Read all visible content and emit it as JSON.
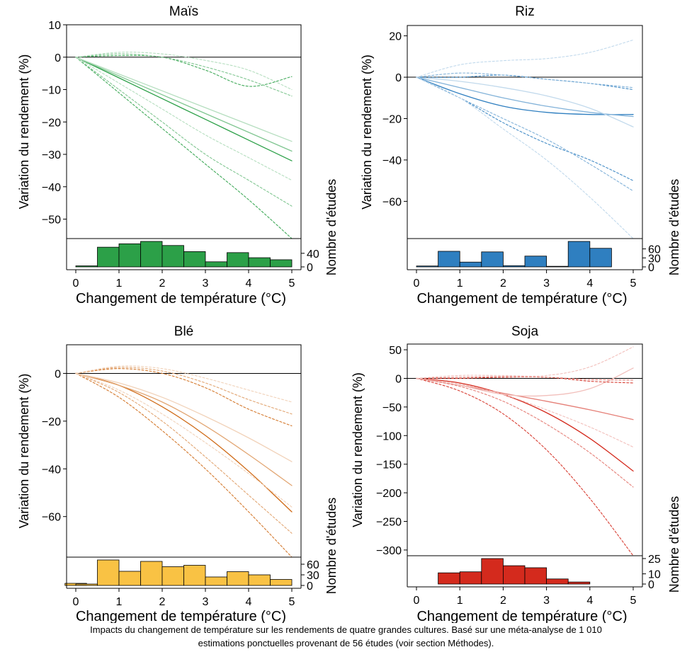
{
  "caption": {
    "line1": "Impacts du changement de température sur les rendements de quatre grandes cultures. Basé sur une méta-analyse de 1 010",
    "line2": "estimations ponctuelles provenant de 56 études (voir section Méthodes)."
  },
  "chart_data": [
    {
      "type": "line",
      "title": "Maïs",
      "xlabel": "Changement de température (°C)",
      "ylabel": "Variation du rendement (%)",
      "y2label": "Nombre d'études",
      "xlim": [
        0,
        5
      ],
      "ylim": [
        -56,
        10
      ],
      "yticks": [
        10,
        0,
        -10,
        -20,
        -30,
        -40,
        -50
      ],
      "ytick_labels": [
        "10",
        "0",
        "−10",
        "−20",
        "−30",
        "−40",
        "−50"
      ],
      "xticks": [
        0,
        1,
        2,
        3,
        4,
        5
      ],
      "color": "#2ca048",
      "curves": [
        {
          "style": "solid",
          "shade": 1.0,
          "y": [
            0,
            -6.4,
            -12.8,
            -19.2,
            -25.6,
            -32
          ]
        },
        {
          "style": "solid",
          "shade": 0.6,
          "y": [
            0,
            -5.8,
            -11.6,
            -17.4,
            -23.2,
            -29
          ]
        },
        {
          "style": "solid",
          "shade": 0.35,
          "y": [
            0,
            -5.2,
            -10.4,
            -15.6,
            -20.8,
            -26
          ]
        },
        {
          "style": "dashed",
          "shade": 0.9,
          "y": [
            0,
            0.5,
            0,
            -4,
            -9,
            -6
          ]
        },
        {
          "style": "dashed",
          "shade": 0.6,
          "y": [
            0,
            1,
            0,
            -3,
            -7,
            -12
          ]
        },
        {
          "style": "dashed",
          "shade": 0.35,
          "y": [
            0,
            1.5,
            1,
            -1,
            -4,
            -10
          ]
        },
        {
          "style": "dashed",
          "shade": 0.9,
          "y": [
            0,
            -11,
            -22,
            -33,
            -44,
            -56
          ]
        },
        {
          "style": "dashed",
          "shade": 0.6,
          "y": [
            0,
            -10,
            -20,
            -30,
            -38,
            -46
          ]
        },
        {
          "style": "dashed",
          "shade": 0.35,
          "y": [
            0,
            -8,
            -16,
            -24,
            -31,
            -38
          ]
        }
      ],
      "histogram": {
        "bin_width": 0.5,
        "bin_starts": [
          0,
          0.5,
          1,
          1.5,
          2,
          2.5,
          3,
          3.5,
          4,
          4.5
        ],
        "counts": [
          3,
          58,
          68,
          75,
          63,
          45,
          15,
          42,
          27,
          21
        ],
        "max": 75,
        "ticks": [
          0,
          40
        ],
        "tick_labels": [
          "0",
          "40"
        ]
      }
    },
    {
      "type": "line",
      "title": "Riz",
      "xlabel": "Changement de température (°C)",
      "ylabel": "Variation du rendement (%)",
      "y2label": "Nombre d'études",
      "xlim": [
        0,
        5
      ],
      "ylim": [
        -78,
        25
      ],
      "yticks": [
        20,
        0,
        -20,
        -40,
        -60
      ],
      "ytick_labels": [
        "20",
        "0",
        "−20",
        "−40",
        "−60"
      ],
      "xticks": [
        0,
        1,
        2,
        3,
        4,
        5
      ],
      "color": "#2f7fc0",
      "curves": [
        {
          "style": "solid",
          "shade": 1.0,
          "y": [
            0,
            -8,
            -14,
            -17,
            -18,
            -18
          ]
        },
        {
          "style": "solid",
          "shade": 0.6,
          "y": [
            0,
            -5,
            -10,
            -14,
            -17,
            -19
          ]
        },
        {
          "style": "solid",
          "shade": 0.3,
          "y": [
            0,
            -2,
            -5,
            -9,
            -15,
            -24
          ]
        },
        {
          "style": "dashed",
          "shade": 0.9,
          "y": [
            0,
            0,
            1,
            -1,
            -3,
            -6
          ]
        },
        {
          "style": "dashed",
          "shade": 0.6,
          "y": [
            0,
            2,
            1,
            -1,
            -3,
            -5
          ]
        },
        {
          "style": "dashed",
          "shade": 0.3,
          "y": [
            0,
            6,
            8,
            9,
            12,
            18
          ]
        },
        {
          "style": "dashed",
          "shade": 0.9,
          "y": [
            0,
            -10,
            -22,
            -32,
            -40,
            -50
          ]
        },
        {
          "style": "dashed",
          "shade": 0.6,
          "y": [
            0,
            -10,
            -20,
            -30,
            -42,
            -55
          ]
        },
        {
          "style": "dashed",
          "shade": 0.3,
          "y": [
            0,
            -10,
            -25,
            -40,
            -58,
            -78
          ]
        }
      ],
      "histogram": {
        "bin_width": 0.5,
        "bin_starts": [
          0,
          0.5,
          1,
          1.5,
          2,
          2.5,
          3,
          3.5,
          4
        ],
        "counts": [
          3,
          52,
          16,
          50,
          4,
          36,
          2,
          85,
          62
        ],
        "max": 85,
        "ticks": [
          0,
          30,
          60
        ],
        "tick_labels": [
          "0",
          "30",
          "60"
        ]
      }
    },
    {
      "type": "line",
      "title": "Blé",
      "xlabel": "Changement de température (°C)",
      "ylabel": "Variation du rendement (%)",
      "y2label": "Nombre d'études",
      "xlim": [
        0,
        5
      ],
      "ylim": [
        -77,
        12
      ],
      "yticks": [
        0,
        -20,
        -40,
        -60
      ],
      "ytick_labels": [
        "0",
        "−20",
        "−40",
        "−60"
      ],
      "xticks": [
        0,
        1,
        2,
        3,
        4,
        5
      ],
      "color": "#cf6a16",
      "curves": [
        {
          "style": "solid",
          "shade": 1.0,
          "y": [
            0,
            -5,
            -14,
            -26,
            -41,
            -58
          ]
        },
        {
          "style": "solid",
          "shade": 0.6,
          "y": [
            0,
            -5,
            -12,
            -22,
            -34,
            -47
          ]
        },
        {
          "style": "solid",
          "shade": 0.3,
          "y": [
            0,
            -4,
            -10,
            -18,
            -27,
            -37
          ]
        },
        {
          "style": "dashed",
          "shade": 0.9,
          "y": [
            0,
            2,
            0,
            -6,
            -15,
            -22
          ]
        },
        {
          "style": "dashed",
          "shade": 0.6,
          "y": [
            0,
            2.5,
            1,
            -4,
            -11,
            -17
          ]
        },
        {
          "style": "dashed",
          "shade": 0.3,
          "y": [
            0,
            3,
            2,
            -2,
            -7,
            -12
          ]
        },
        {
          "style": "dashed",
          "shade": 0.9,
          "y": [
            0,
            -10,
            -24,
            -40,
            -58,
            -77
          ]
        },
        {
          "style": "dashed",
          "shade": 0.6,
          "y": [
            0,
            -8,
            -20,
            -35,
            -51,
            -67
          ]
        },
        {
          "style": "dashed",
          "shade": 0.3,
          "y": [
            0,
            -7,
            -17,
            -29,
            -42,
            -56
          ]
        }
      ],
      "histogram": {
        "bin_width": 0.5,
        "bin_starts": [
          -0.25,
          0,
          0.5,
          1,
          1.5,
          2,
          2.5,
          3,
          3.5,
          4,
          4.5
        ],
        "counts": [
          6,
          4,
          72,
          40,
          68,
          53,
          57,
          24,
          39,
          30,
          17
        ],
        "max": 72,
        "ticks": [
          0,
          30,
          60
        ],
        "tick_labels": [
          "0",
          "30",
          "60"
        ]
      }
    },
    {
      "type": "line",
      "title": "Soja",
      "xlabel": "Changement de température (°C)",
      "ylabel": "Variation du rendement (%)",
      "y2label": "Nombre d'études",
      "xlim": [
        0,
        5
      ],
      "ylim": [
        -310,
        60
      ],
      "yticks": [
        50,
        0,
        -50,
        -100,
        -150,
        -200,
        -250,
        -300
      ],
      "ytick_labels": [
        "50",
        "0",
        "−50",
        "−100",
        "−150",
        "−200",
        "−250",
        "−300"
      ],
      "xticks": [
        0,
        1,
        2,
        3,
        4,
        5
      ],
      "color": "#d42a1d",
      "curves": [
        {
          "style": "solid",
          "shade": 1.0,
          "y": [
            0,
            -8,
            -28,
            -60,
            -105,
            -162
          ]
        },
        {
          "style": "solid",
          "shade": 0.6,
          "y": [
            0,
            -12,
            -26,
            -40,
            -55,
            -72
          ]
        },
        {
          "style": "solid",
          "shade": 0.3,
          "y": [
            0,
            -12,
            -28,
            -30,
            -18,
            18
          ]
        },
        {
          "style": "dashed",
          "shade": 0.9,
          "y": [
            0,
            0,
            2,
            2,
            -5,
            -8
          ]
        },
        {
          "style": "dashed",
          "shade": 0.6,
          "y": [
            0,
            2,
            3,
            2,
            -2,
            -3
          ]
        },
        {
          "style": "dashed",
          "shade": 0.3,
          "y": [
            0,
            5,
            5,
            5,
            20,
            55
          ]
        },
        {
          "style": "dashed",
          "shade": 0.9,
          "y": [
            0,
            -22,
            -62,
            -125,
            -210,
            -310
          ]
        },
        {
          "style": "dashed",
          "shade": 0.6,
          "y": [
            0,
            -14,
            -40,
            -80,
            -130,
            -190
          ]
        },
        {
          "style": "dashed",
          "shade": 0.3,
          "y": [
            0,
            -10,
            -28,
            -55,
            -85,
            -120
          ]
        }
      ],
      "histogram": {
        "bin_width": 0.5,
        "bin_starts": [
          0.5,
          1,
          1.5,
          2,
          2.5,
          3,
          3.5
        ],
        "counts": [
          11,
          12,
          25,
          18,
          16,
          5,
          2
        ],
        "max": 25,
        "ticks": [
          0,
          10,
          25
        ],
        "tick_labels": [
          "0",
          "10",
          "25"
        ]
      }
    }
  ]
}
